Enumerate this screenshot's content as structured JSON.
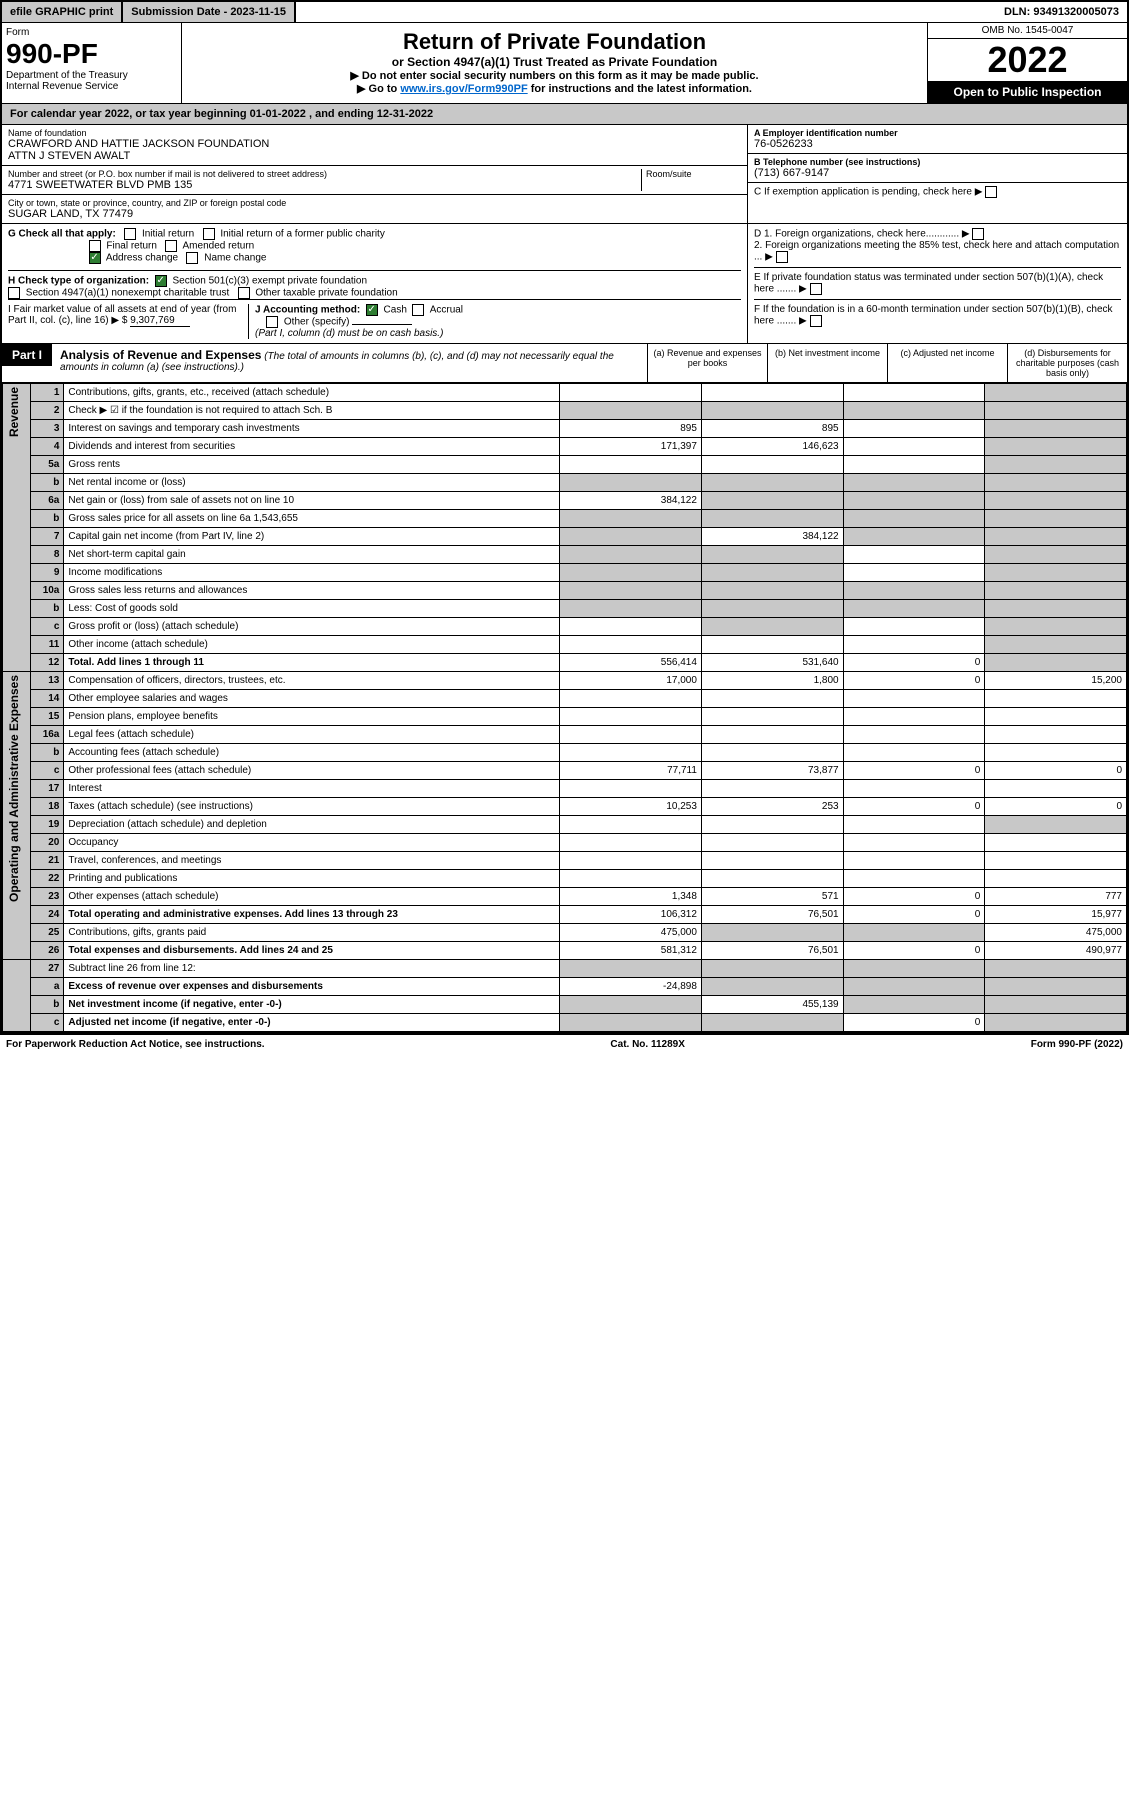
{
  "top": {
    "efile": "efile GRAPHIC print",
    "subdate_label": "Submission Date - 2023-11-15",
    "dln": "DLN: 93491320005073"
  },
  "header": {
    "form": "Form",
    "formno": "990-PF",
    "dept": "Department of the Treasury",
    "irs": "Internal Revenue Service",
    "title": "Return of Private Foundation",
    "subtitle": "or Section 4947(a)(1) Trust Treated as Private Foundation",
    "note1": "▶ Do not enter social security numbers on this form as it may be made public.",
    "note2_pre": "▶ Go to ",
    "note2_link": "www.irs.gov/Form990PF",
    "note2_post": " for instructions and the latest information.",
    "omb": "OMB No. 1545-0047",
    "year": "2022",
    "open": "Open to Public Inspection"
  },
  "cal": "For calendar year 2022, or tax year beginning 01-01-2022                       , and ending 12-31-2022",
  "info": {
    "name_label": "Name of foundation",
    "name": "CRAWFORD AND HATTIE JACKSON FOUNDATION",
    "attn": "ATTN J STEVEN AWALT",
    "addr_label": "Number and street (or P.O. box number if mail is not delivered to street address)",
    "addr": "4771 SWEETWATER BLVD PMB 135",
    "room_label": "Room/suite",
    "city_label": "City or town, state or province, country, and ZIP or foreign postal code",
    "city": "SUGAR LAND, TX  77479",
    "ein_label": "A Employer identification number",
    "ein": "76-0526233",
    "tel_label": "B Telephone number (see instructions)",
    "tel": "(713) 667-9147",
    "c_label": "C If exemption application is pending, check here"
  },
  "checks": {
    "g_label": "G Check all that apply:",
    "g_initial": "Initial return",
    "g_initial_former": "Initial return of a former public charity",
    "g_final": "Final return",
    "g_amended": "Amended return",
    "g_address": "Address change",
    "g_name": "Name change",
    "h_label": "H Check type of organization:",
    "h_501c3": "Section 501(c)(3) exempt private foundation",
    "h_4947": "Section 4947(a)(1) nonexempt charitable trust",
    "h_other": "Other taxable private foundation",
    "i_label": "I Fair market value of all assets at end of year (from Part II, col. (c), line 16)",
    "i_val": "9,307,769",
    "j_label": "J Accounting method:",
    "j_cash": "Cash",
    "j_accrual": "Accrual",
    "j_other": "Other (specify)",
    "j_note": "(Part I, column (d) must be on cash basis.)",
    "d1": "D 1. Foreign organizations, check here............",
    "d2": "2. Foreign organizations meeting the 85% test, check here and attach computation ...",
    "e": "E If private foundation status was terminated under section 507(b)(1)(A), check here .......",
    "f": "F If the foundation is in a 60-month termination under section 507(b)(1)(B), check here ......."
  },
  "part1": {
    "label": "Part I",
    "title": "Analysis of Revenue and Expenses",
    "note": "(The total of amounts in columns (b), (c), and (d) may not necessarily equal the amounts in column (a) (see instructions).)",
    "cols": {
      "a": "(a) Revenue and expenses per books",
      "b": "(b) Net investment income",
      "c": "(c) Adjusted net income",
      "d": "(d) Disbursements for charitable purposes (cash basis only)"
    }
  },
  "sections": {
    "revenue": "Revenue",
    "expenses": "Operating and Administrative Expenses"
  },
  "rows": [
    {
      "n": "1",
      "desc": "Contributions, gifts, grants, etc., received (attach schedule)",
      "a": "",
      "b": "",
      "c": "",
      "d": "",
      "shade_d": true
    },
    {
      "n": "2",
      "desc": "Check ▶ ☑ if the foundation is not required to attach Sch. B",
      "a": "",
      "b": "",
      "c": "",
      "d": "",
      "shade_all": true
    },
    {
      "n": "3",
      "desc": "Interest on savings and temporary cash investments",
      "a": "895",
      "b": "895",
      "c": "",
      "d": "",
      "shade_d": true
    },
    {
      "n": "4",
      "desc": "Dividends and interest from securities",
      "a": "171,397",
      "b": "146,623",
      "c": "",
      "d": "",
      "shade_d": true
    },
    {
      "n": "5a",
      "desc": "Gross rents",
      "a": "",
      "b": "",
      "c": "",
      "d": "",
      "shade_d": true
    },
    {
      "n": "b",
      "desc": "Net rental income or (loss)",
      "a": "",
      "b": "",
      "c": "",
      "d": "",
      "shade_all": true
    },
    {
      "n": "6a",
      "desc": "Net gain or (loss) from sale of assets not on line 10",
      "a": "384,122",
      "b": "",
      "c": "",
      "d": "",
      "shade_bcd": true
    },
    {
      "n": "b",
      "desc": "Gross sales price for all assets on line 6a        1,543,655",
      "a": "",
      "b": "",
      "c": "",
      "d": "",
      "shade_all": true
    },
    {
      "n": "7",
      "desc": "Capital gain net income (from Part IV, line 2)",
      "a": "",
      "b": "384,122",
      "c": "",
      "d": "",
      "shade_acd": true,
      "shade_a": true
    },
    {
      "n": "8",
      "desc": "Net short-term capital gain",
      "a": "",
      "b": "",
      "c": "",
      "d": "",
      "shade_abd": true
    },
    {
      "n": "9",
      "desc": "Income modifications",
      "a": "",
      "b": "",
      "c": "",
      "d": "",
      "shade_abd": true
    },
    {
      "n": "10a",
      "desc": "Gross sales less returns and allowances",
      "a": "",
      "b": "",
      "c": "",
      "d": "",
      "shade_all": true
    },
    {
      "n": "b",
      "desc": "Less: Cost of goods sold",
      "a": "",
      "b": "",
      "c": "",
      "d": "",
      "shade_all": true
    },
    {
      "n": "c",
      "desc": "Gross profit or (loss) (attach schedule)",
      "a": "",
      "b": "",
      "c": "",
      "d": "",
      "shade_bd": true
    },
    {
      "n": "11",
      "desc": "Other income (attach schedule)",
      "a": "",
      "b": "",
      "c": "",
      "d": "",
      "shade_d": true
    },
    {
      "n": "12",
      "desc": "Total. Add lines 1 through 11",
      "a": "556,414",
      "b": "531,640",
      "c": "0",
      "d": "",
      "bold": true,
      "shade_d": true
    }
  ],
  "exp_rows": [
    {
      "n": "13",
      "desc": "Compensation of officers, directors, trustees, etc.",
      "a": "17,000",
      "b": "1,800",
      "c": "0",
      "d": "15,200"
    },
    {
      "n": "14",
      "desc": "Other employee salaries and wages",
      "a": "",
      "b": "",
      "c": "",
      "d": ""
    },
    {
      "n": "15",
      "desc": "Pension plans, employee benefits",
      "a": "",
      "b": "",
      "c": "",
      "d": ""
    },
    {
      "n": "16a",
      "desc": "Legal fees (attach schedule)",
      "a": "",
      "b": "",
      "c": "",
      "d": ""
    },
    {
      "n": "b",
      "desc": "Accounting fees (attach schedule)",
      "a": "",
      "b": "",
      "c": "",
      "d": ""
    },
    {
      "n": "c",
      "desc": "Other professional fees (attach schedule)",
      "a": "77,711",
      "b": "73,877",
      "c": "0",
      "d": "0"
    },
    {
      "n": "17",
      "desc": "Interest",
      "a": "",
      "b": "",
      "c": "",
      "d": ""
    },
    {
      "n": "18",
      "desc": "Taxes (attach schedule) (see instructions)",
      "a": "10,253",
      "b": "253",
      "c": "0",
      "d": "0"
    },
    {
      "n": "19",
      "desc": "Depreciation (attach schedule) and depletion",
      "a": "",
      "b": "",
      "c": "",
      "d": "",
      "shade_d": true
    },
    {
      "n": "20",
      "desc": "Occupancy",
      "a": "",
      "b": "",
      "c": "",
      "d": ""
    },
    {
      "n": "21",
      "desc": "Travel, conferences, and meetings",
      "a": "",
      "b": "",
      "c": "",
      "d": ""
    },
    {
      "n": "22",
      "desc": "Printing and publications",
      "a": "",
      "b": "",
      "c": "",
      "d": ""
    },
    {
      "n": "23",
      "desc": "Other expenses (attach schedule)",
      "a": "1,348",
      "b": "571",
      "c": "0",
      "d": "777"
    },
    {
      "n": "24",
      "desc": "Total operating and administrative expenses. Add lines 13 through 23",
      "a": "106,312",
      "b": "76,501",
      "c": "0",
      "d": "15,977",
      "bold": true
    },
    {
      "n": "25",
      "desc": "Contributions, gifts, grants paid",
      "a": "475,000",
      "b": "",
      "c": "",
      "d": "475,000",
      "shade_bc": true
    },
    {
      "n": "26",
      "desc": "Total expenses and disbursements. Add lines 24 and 25",
      "a": "581,312",
      "b": "76,501",
      "c": "0",
      "d": "490,977",
      "bold": true
    }
  ],
  "bottom_rows": [
    {
      "n": "27",
      "desc": "Subtract line 26 from line 12:",
      "a": "",
      "b": "",
      "c": "",
      "d": "",
      "shade_all": true
    },
    {
      "n": "a",
      "desc": "Excess of revenue over expenses and disbursements",
      "a": "-24,898",
      "b": "",
      "c": "",
      "d": "",
      "bold": true,
      "shade_bcd": true
    },
    {
      "n": "b",
      "desc": "Net investment income (if negative, enter -0-)",
      "a": "",
      "b": "455,139",
      "c": "",
      "d": "",
      "bold": true,
      "shade_acd": true
    },
    {
      "n": "c",
      "desc": "Adjusted net income (if negative, enter -0-)",
      "a": "",
      "b": "",
      "c": "0",
      "d": "",
      "bold": true,
      "shade_abd": true
    }
  ],
  "footer": {
    "left": "For Paperwork Reduction Act Notice, see instructions.",
    "mid": "Cat. No. 11289X",
    "right": "Form 990-PF (2022)"
  }
}
